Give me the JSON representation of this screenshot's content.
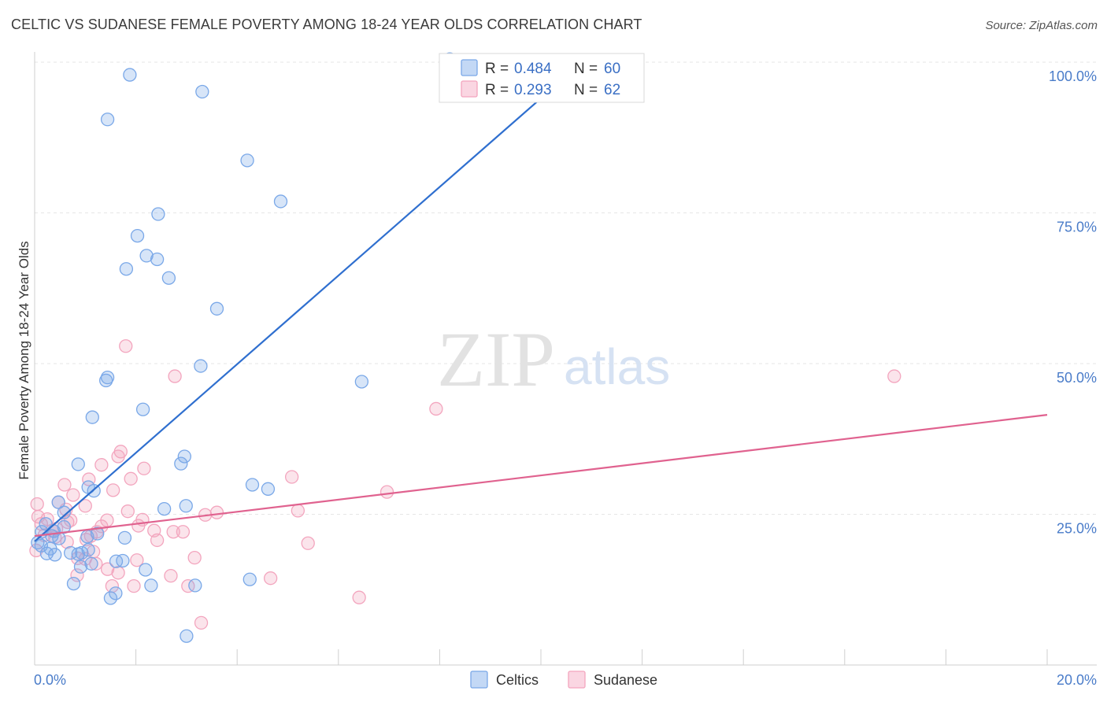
{
  "header": {
    "title": "CELTIC VS SUDANESE FEMALE POVERTY AMONG 18-24 YEAR OLDS CORRELATION CHART",
    "source": "Source: ZipAtlas.com"
  },
  "watermark": {
    "zip": "ZIP",
    "atlas": "atlas"
  },
  "legend": {
    "rows": [
      {
        "r_label": "R =",
        "r_value": "0.484",
        "n_label": "N =",
        "n_value": "60",
        "color": "#7aa8e8"
      },
      {
        "r_label": "R =",
        "r_value": "0.293",
        "n_label": "N =",
        "n_value": "62",
        "color": "#f3a5be"
      }
    ]
  },
  "bottom_legend": {
    "items": [
      "Celtics",
      "Sudanese"
    ]
  },
  "colors": {
    "celtics": "#7aa8e8",
    "celtics_line": "#2f6fcf",
    "sudanese": "#f3a5be",
    "sudanese_line": "#e0628f",
    "tick": "#4a7cc9"
  },
  "chart_data": {
    "type": "scatter",
    "title": "CELTIC VS SUDANESE FEMALE POVERTY AMONG 18-24 YEAR OLDS CORRELATION CHART",
    "xlabel": "",
    "ylabel": "Female Poverty Among 18-24 Year Olds",
    "xlim": [
      0,
      20
    ],
    "ylim": [
      0,
      100
    ],
    "x_tick_labels": [
      "0.0%",
      "20.0%"
    ],
    "y_tick_labels": [
      "25.0%",
      "50.0%",
      "75.0%",
      "100.0%"
    ],
    "y_ticks": [
      25,
      50,
      75,
      100
    ],
    "grid": true,
    "legend_position": "top-center",
    "series": [
      {
        "name": "Celtics",
        "r": 0.484,
        "n": 60,
        "trend": {
          "x": [
            0,
            10
          ],
          "y": [
            20.5,
            94
          ]
        },
        "points": [
          [
            1.88,
            97.9
          ],
          [
            3.31,
            95.1
          ],
          [
            1.44,
            90.5
          ],
          [
            4.2,
            83.7
          ],
          [
            4.86,
            76.9
          ],
          [
            2.44,
            74.8
          ],
          [
            2.03,
            71.2
          ],
          [
            2.21,
            67.9
          ],
          [
            2.42,
            67.3
          ],
          [
            1.81,
            65.7
          ],
          [
            2.65,
            64.2
          ],
          [
            3.6,
            59.1
          ],
          [
            3.28,
            49.6
          ],
          [
            1.44,
            47.7
          ],
          [
            1.41,
            47.2
          ],
          [
            6.46,
            47.0
          ],
          [
            2.14,
            42.4
          ],
          [
            1.14,
            41.1
          ],
          [
            2.96,
            34.6
          ],
          [
            2.89,
            33.4
          ],
          [
            0.86,
            33.3
          ],
          [
            4.3,
            29.9
          ],
          [
            4.61,
            29.2
          ],
          [
            1.17,
            28.9
          ],
          [
            1.06,
            29.5
          ],
          [
            0.47,
            27.0
          ],
          [
            2.56,
            25.9
          ],
          [
            2.99,
            26.4
          ],
          [
            0.58,
            25.3
          ],
          [
            0.22,
            23.4
          ],
          [
            0.58,
            22.9
          ],
          [
            0.38,
            22.2
          ],
          [
            0.14,
            22.1
          ],
          [
            0.34,
            21.4
          ],
          [
            0.48,
            21.0
          ],
          [
            0.06,
            20.3
          ],
          [
            1.04,
            21.3
          ],
          [
            1.24,
            21.8
          ],
          [
            1.78,
            21.1
          ],
          [
            0.13,
            19.8
          ],
          [
            0.31,
            19.3
          ],
          [
            0.24,
            18.5
          ],
          [
            0.71,
            18.6
          ],
          [
            0.86,
            18.4
          ],
          [
            0.93,
            18.6
          ],
          [
            0.4,
            18.3
          ],
          [
            1.06,
            19.1
          ],
          [
            1.12,
            16.8
          ],
          [
            1.61,
            17.2
          ],
          [
            1.74,
            17.3
          ],
          [
            2.19,
            15.8
          ],
          [
            0.91,
            16.3
          ],
          [
            0.77,
            13.5
          ],
          [
            3.17,
            13.2
          ],
          [
            4.25,
            14.2
          ],
          [
            2.3,
            13.2
          ],
          [
            1.6,
            11.9
          ],
          [
            1.5,
            11.1
          ],
          [
            3.0,
            4.8
          ],
          [
            8.2,
            100.5
          ]
        ]
      },
      {
        "name": "Sudanese",
        "r": 0.293,
        "n": 62,
        "trend": {
          "x": [
            0,
            20
          ],
          "y": [
            21.4,
            41.5
          ]
        },
        "points": [
          [
            1.8,
            52.9
          ],
          [
            2.77,
            47.9
          ],
          [
            7.93,
            42.5
          ],
          [
            16.98,
            47.9
          ],
          [
            1.7,
            35.4
          ],
          [
            1.65,
            34.6
          ],
          [
            1.32,
            33.2
          ],
          [
            2.16,
            32.6
          ],
          [
            5.08,
            31.2
          ],
          [
            1.9,
            30.9
          ],
          [
            1.07,
            30.8
          ],
          [
            0.59,
            29.9
          ],
          [
            1.55,
            29.0
          ],
          [
            0.76,
            28.2
          ],
          [
            0.47,
            27.0
          ],
          [
            0.05,
            26.7
          ],
          [
            6.96,
            28.7
          ],
          [
            1.0,
            26.4
          ],
          [
            0.25,
            24.2
          ],
          [
            0.62,
            25.8
          ],
          [
            1.84,
            25.5
          ],
          [
            3.6,
            25.3
          ],
          [
            5.2,
            25.6
          ],
          [
            3.37,
            24.9
          ],
          [
            0.71,
            24.0
          ],
          [
            1.43,
            24.0
          ],
          [
            2.13,
            24.1
          ],
          [
            0.65,
            23.7
          ],
          [
            1.32,
            23.0
          ],
          [
            2.05,
            23.1
          ],
          [
            0.13,
            23.4
          ],
          [
            0.43,
            22.6
          ],
          [
            0.35,
            22.3
          ],
          [
            1.23,
            22.1
          ],
          [
            2.36,
            22.3
          ],
          [
            2.74,
            22.1
          ],
          [
            2.93,
            22.1
          ],
          [
            0.19,
            21.5
          ],
          [
            0.4,
            21.2
          ],
          [
            1.11,
            21.4
          ],
          [
            1.02,
            20.8
          ],
          [
            2.42,
            20.7
          ],
          [
            0.64,
            20.4
          ],
          [
            5.4,
            20.2
          ],
          [
            1.16,
            18.8
          ],
          [
            1.0,
            17.6
          ],
          [
            2.02,
            17.4
          ],
          [
            3.16,
            17.8
          ],
          [
            1.21,
            16.8
          ],
          [
            1.44,
            15.9
          ],
          [
            0.85,
            17.7
          ],
          [
            1.65,
            15.3
          ],
          [
            0.84,
            14.9
          ],
          [
            2.69,
            14.8
          ],
          [
            4.66,
            14.4
          ],
          [
            1.53,
            13.1
          ],
          [
            1.96,
            13.1
          ],
          [
            3.03,
            13.1
          ],
          [
            6.41,
            11.2
          ],
          [
            3.29,
            7.0
          ],
          [
            0.03,
            19.0
          ],
          [
            0.07,
            24.6
          ]
        ]
      }
    ]
  }
}
